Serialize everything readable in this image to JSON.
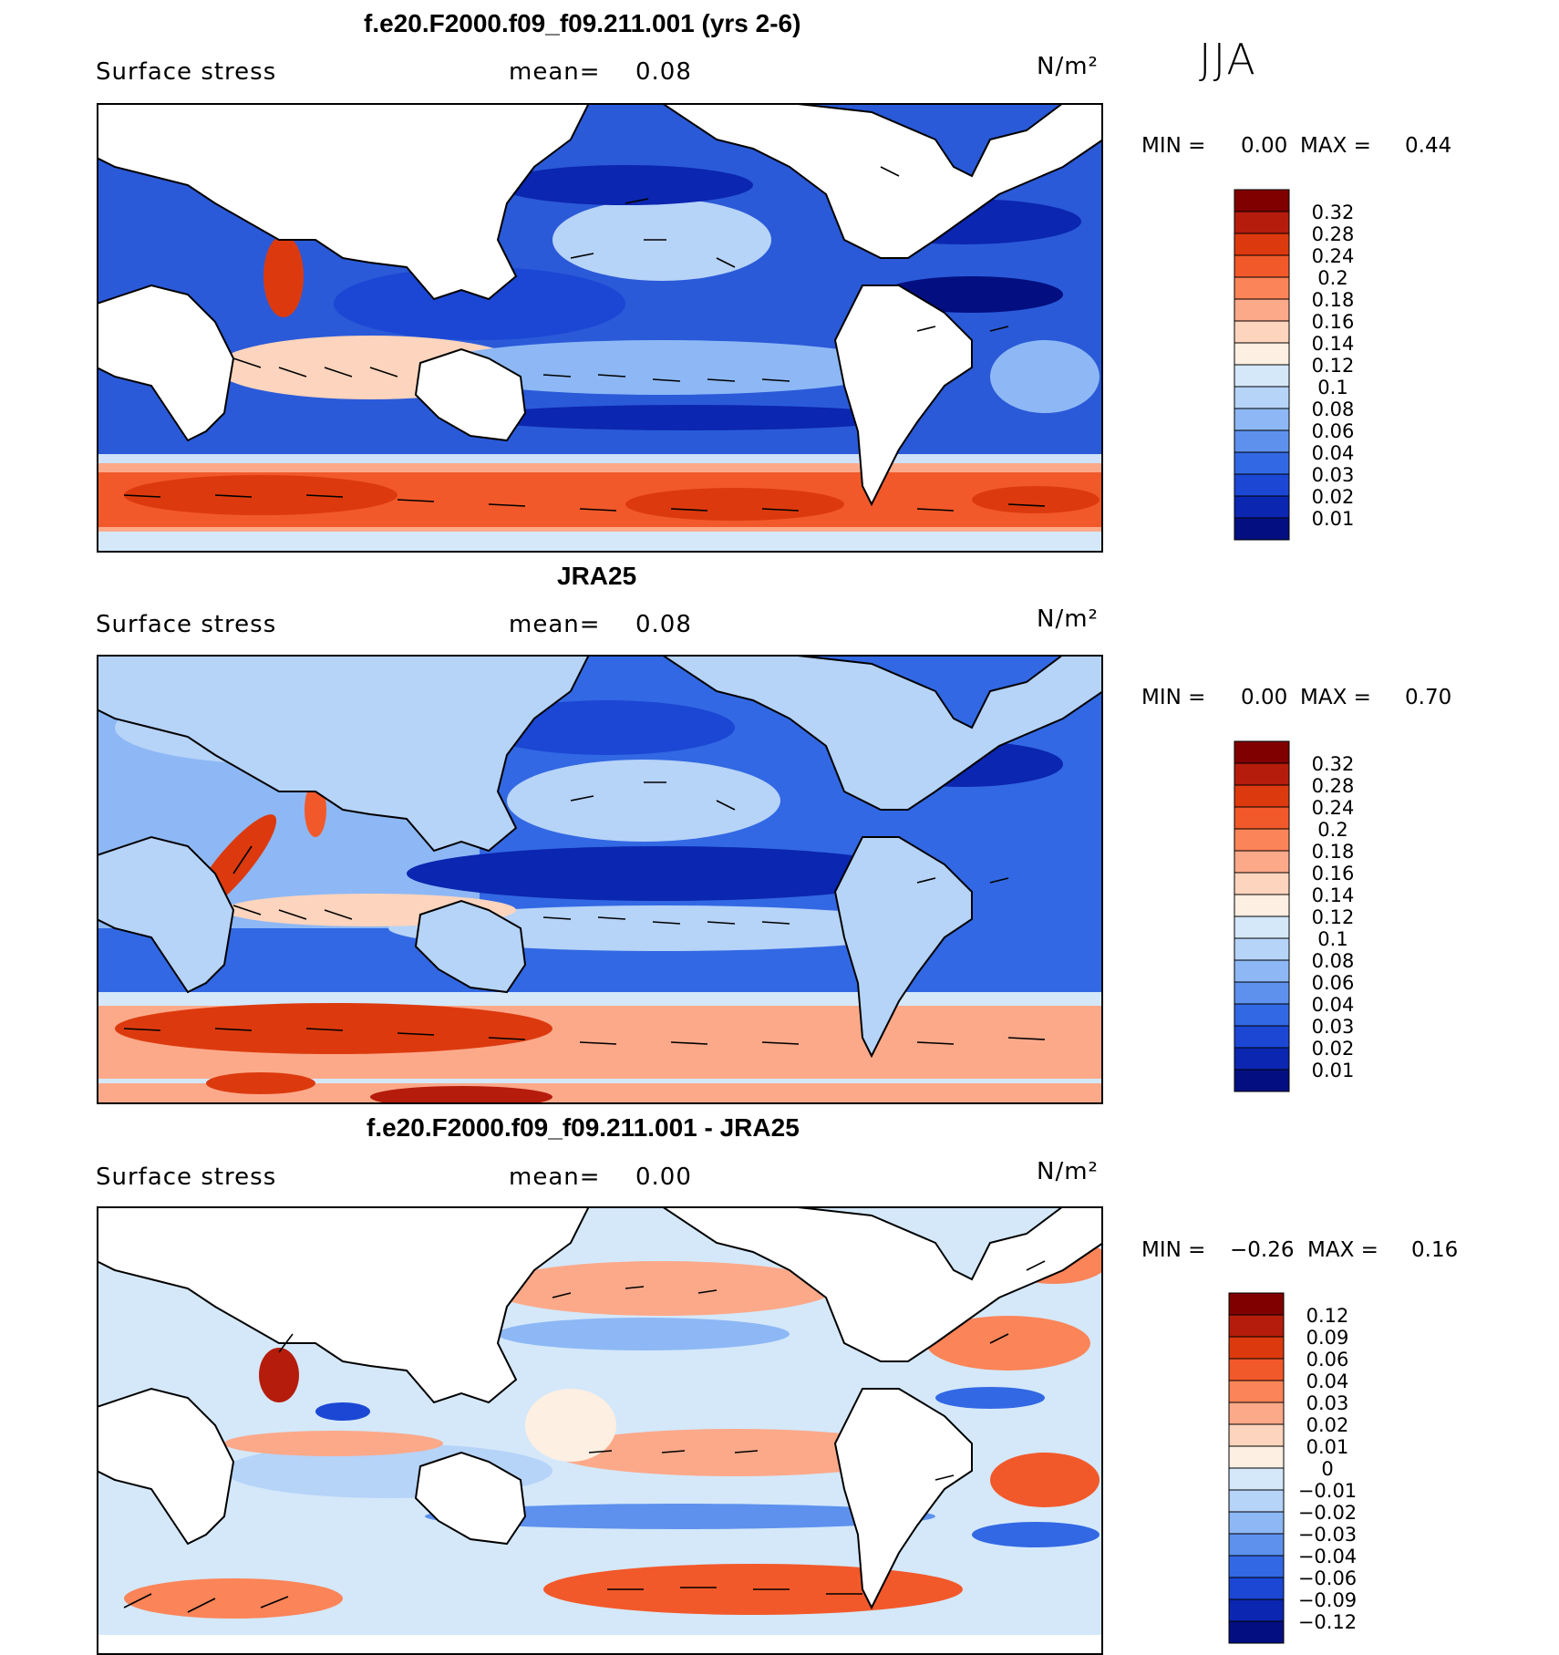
{
  "season": "JJA",
  "panels": [
    {
      "title": "f.e20.F2000.f09_f09.211.001 (yrs 2-6)",
      "variable": "Surface stress",
      "mean_label": "mean=",
      "mean_value": "0.08",
      "units": "N/m²",
      "min_label": "MIN =",
      "min_value": "0.00",
      "max_label": "MAX =",
      "max_value": "0.44",
      "legend_colors": [
        "#800000",
        "#b51c0c",
        "#dc3a0e",
        "#f2592a",
        "#fb8458",
        "#fca98a",
        "#fdd4bd",
        "#fdefe2",
        "#d4e8fa",
        "#b6d3f8",
        "#8db8f5",
        "#5e91ee",
        "#3268e3",
        "#1b47d4",
        "#0b26b0",
        "#030f80"
      ],
      "legend_labels": [
        "0.32",
        "0.28",
        "0.24",
        "0.2",
        "0.18",
        "0.16",
        "0.14",
        "0.12",
        "0.1",
        "0.08",
        "0.06",
        "0.04",
        "0.03",
        "0.02",
        "0.01"
      ]
    },
    {
      "title": "JRA25",
      "variable": "Surface stress",
      "mean_label": "mean=",
      "mean_value": "0.08",
      "units": "N/m²",
      "min_label": "MIN =",
      "min_value": "0.00",
      "max_label": "MAX =",
      "max_value": "0.70",
      "legend_colors": [
        "#800000",
        "#b51c0c",
        "#dc3a0e",
        "#f2592a",
        "#fb8458",
        "#fca98a",
        "#fdd4bd",
        "#fdefe2",
        "#d4e8fa",
        "#b6d3f8",
        "#8db8f5",
        "#5e91ee",
        "#3268e3",
        "#1b47d4",
        "#0b26b0",
        "#030f80"
      ],
      "legend_labels": [
        "0.32",
        "0.28",
        "0.24",
        "0.2",
        "0.18",
        "0.16",
        "0.14",
        "0.12",
        "0.1",
        "0.08",
        "0.06",
        "0.04",
        "0.03",
        "0.02",
        "0.01"
      ]
    },
    {
      "title": "f.e20.F2000.f09_f09.211.001 - JRA25",
      "variable": "Surface stress",
      "mean_label": "mean=",
      "mean_value": "0.00",
      "units": "N/m²",
      "min_label": "MIN =",
      "min_value": "−0.26",
      "max_label": "MAX =",
      "max_value": "0.16",
      "legend_colors": [
        "#800000",
        "#b51c0c",
        "#dc3a0e",
        "#f2592a",
        "#fb8458",
        "#fca98a",
        "#fdd4bd",
        "#fdefe2",
        "#d4e8fa",
        "#b6d3f8",
        "#8db8f5",
        "#5e91ee",
        "#3268e3",
        "#1b47d4",
        "#0b26b0",
        "#030f80"
      ],
      "legend_labels": [
        "0.12",
        "0.09",
        "0.06",
        "0.04",
        "0.03",
        "0.02",
        "0.01",
        "0",
        "−0.01",
        "−0.02",
        "−0.03",
        "−0.04",
        "−0.06",
        "−0.09",
        "−0.12"
      ]
    }
  ]
}
